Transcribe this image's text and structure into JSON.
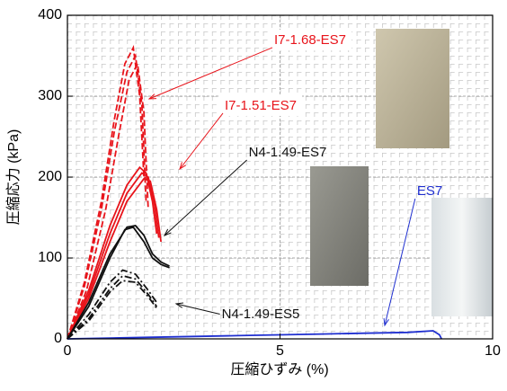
{
  "chart_data": {
    "type": "line",
    "xlabel": "圧縮ひずみ (%)",
    "ylabel": "圧縮応力 (kPa)",
    "xlim": [
      0,
      10
    ],
    "xticks": [
      0,
      5,
      10
    ],
    "ylim": [
      0,
      400
    ],
    "yticks": [
      0,
      100,
      200,
      300,
      400
    ],
    "grid": true,
    "series": [
      {
        "name": "I7-1.68-ES7",
        "color": "#e8141b",
        "dash": "7 3",
        "curves": [
          {
            "x": [
              0,
              0.4,
              0.8,
              1.1,
              1.35,
              1.55,
              1.7,
              1.8
            ],
            "values": [
              0,
              70,
              170,
              270,
              340,
              360,
              300,
              200
            ]
          },
          {
            "x": [
              0,
              0.4,
              0.8,
              1.1,
              1.4,
              1.6,
              1.75,
              1.85
            ],
            "values": [
              0,
              65,
              160,
              255,
              330,
              350,
              290,
              170
            ]
          },
          {
            "x": [
              0,
              0.45,
              0.9,
              1.2,
              1.45,
              1.65,
              1.8,
              1.9
            ],
            "values": [
              0,
              60,
              160,
              250,
              320,
              340,
              280,
              160
            ]
          }
        ]
      },
      {
        "name": "I7-1.51-ES7",
        "color": "#e8141b",
        "dash": "none",
        "curves": [
          {
            "x": [
              0,
              0.5,
              1.0,
              1.4,
              1.7,
              1.85,
              2.0,
              2.1
            ],
            "values": [
              0,
              60,
              140,
              190,
              212,
              205,
              170,
              130
            ]
          },
          {
            "x": [
              0,
              0.5,
              1.0,
              1.4,
              1.75,
              1.9,
              2.05,
              2.15
            ],
            "values": [
              0,
              55,
              130,
              180,
              205,
              200,
              165,
              125
            ]
          },
          {
            "x": [
              0,
              0.5,
              1.0,
              1.4,
              1.8,
              1.95,
              2.1,
              2.2
            ],
            "values": [
              0,
              50,
              120,
              170,
              198,
              195,
              160,
              120
            ]
          }
        ]
      },
      {
        "name": "N4-1.49-ES7",
        "color": "#111111",
        "dash": "none",
        "curves": [
          {
            "x": [
              0,
              0.5,
              1.0,
              1.4,
              1.6,
              1.8,
              2.0,
              2.2,
              2.4
            ],
            "values": [
              0,
              45,
              105,
              138,
              140,
              128,
              105,
              95,
              90
            ]
          },
          {
            "x": [
              0,
              0.5,
              1.0,
              1.35,
              1.55,
              1.8,
              2.0,
              2.2,
              2.4
            ],
            "values": [
              0,
              40,
              100,
              135,
              138,
              120,
              100,
              92,
              88
            ]
          }
        ]
      },
      {
        "name": "N4-1.49-ES5",
        "color": "#111111",
        "dash": "8 3 2 3",
        "curves": [
          {
            "x": [
              0,
              0.5,
              1.0,
              1.3,
              1.6,
              1.9,
              2.1
            ],
            "values": [
              0,
              30,
              70,
              85,
              80,
              60,
              45
            ]
          },
          {
            "x": [
              0,
              0.5,
              1.0,
              1.3,
              1.6,
              1.9,
              2.1
            ],
            "values": [
              0,
              25,
              62,
              78,
              74,
              55,
              40
            ]
          },
          {
            "x": [
              0,
              0.5,
              1.0,
              1.3,
              1.6,
              1.9,
              2.1
            ],
            "values": [
              0,
              22,
              58,
              72,
              70,
              52,
              38
            ]
          }
        ]
      },
      {
        "name": "ES7",
        "color": "#1f2fd0",
        "dash": "none",
        "curves": [
          {
            "x": [
              0,
              1,
              2,
              3,
              4,
              5,
              6,
              7,
              8,
              8.6,
              8.75,
              8.8
            ],
            "values": [
              0,
              1,
              2,
              3,
              4,
              5,
              6,
              7,
              8,
              10,
              5,
              0
            ]
          }
        ]
      }
    ]
  }
}
